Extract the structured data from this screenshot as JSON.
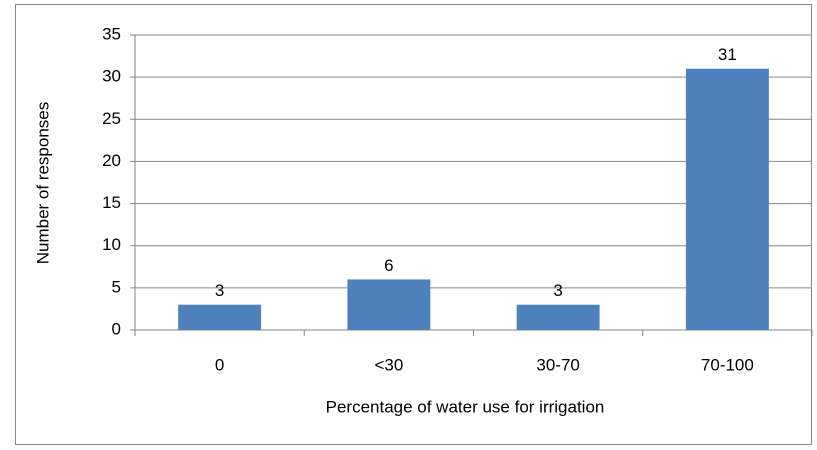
{
  "chart_data": {
    "type": "bar",
    "categories": [
      "0",
      "<30",
      "30-70",
      "70-100"
    ],
    "values": [
      3,
      6,
      3,
      31
    ],
    "color": "#4f81bd",
    "x_label": "Percentage of water use for irrigation",
    "y_label": "Number of responses",
    "ylim": [
      0,
      35
    ],
    "yticks": [
      0,
      5,
      10,
      15,
      20,
      25,
      30,
      35
    ],
    "grid": true,
    "data_labels": true
  }
}
